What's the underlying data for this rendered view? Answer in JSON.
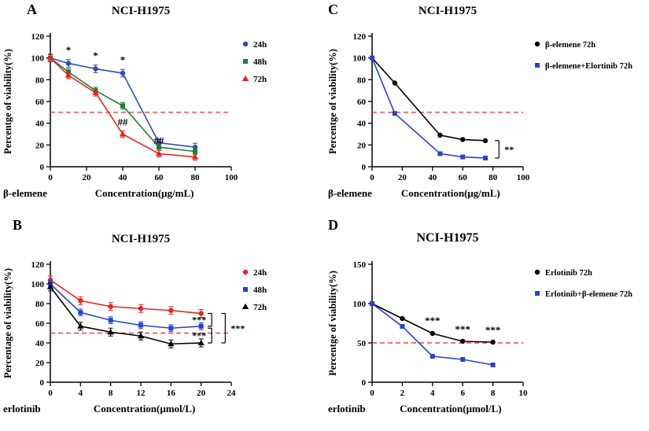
{
  "figure": {
    "background": "#ffffff",
    "cell_line": "NCI-H1975"
  },
  "chart_data": [
    {
      "id": "A",
      "panel_label": "A",
      "type": "line",
      "title": "NCI-H1975",
      "ylabel": "Percentge of viability(%)",
      "xlabel": "Concentration(μg/mL)",
      "xlabel_prefix": "β-elemene",
      "xlim": [
        0,
        100
      ],
      "ylim": [
        0,
        120
      ],
      "xticks": [
        0,
        20,
        40,
        60,
        80,
        100
      ],
      "yticks": [
        0,
        20,
        40,
        60,
        80,
        100,
        120
      ],
      "grid": false,
      "legend_position": "right",
      "reference_line": {
        "y": 50,
        "color": "#ef4444",
        "style": "dashed"
      },
      "series": [
        {
          "name": "24h",
          "color": "#2f4bb5",
          "marker": "circle",
          "yerr": 3.5,
          "x": [
            0,
            10,
            25,
            40,
            60,
            80
          ],
          "y": [
            100,
            95,
            90,
            86,
            22,
            18
          ]
        },
        {
          "name": "48h",
          "color": "#1e7b33",
          "marker": "square",
          "yerr": 3,
          "x": [
            0,
            10,
            25,
            40,
            60,
            80
          ],
          "y": [
            100,
            87,
            70,
            56,
            18,
            14
          ]
        },
        {
          "name": "72h",
          "color": "#e8231f",
          "marker": "triangle",
          "yerr": 3,
          "x": [
            0,
            10,
            25,
            40,
            60,
            80
          ],
          "y": [
            100,
            84,
            68,
            30,
            12,
            9
          ]
        }
      ],
      "annotations": [
        {
          "type": "text",
          "text": "*",
          "x": 10,
          "y": 104
        },
        {
          "type": "text",
          "text": "*",
          "x": 25,
          "y": 99
        },
        {
          "type": "text",
          "text": "*",
          "x": 40,
          "y": 95
        },
        {
          "type": "text",
          "text": "##",
          "x": 40,
          "y": 38
        },
        {
          "type": "text",
          "text": "##",
          "x": 60,
          "y": 21
        }
      ]
    },
    {
      "id": "B",
      "panel_label": "B",
      "type": "line",
      "title": "NCI-H1975",
      "ylabel": "Percentage of viability(%)",
      "xlabel": "Concentration(μmol/L)",
      "xlabel_prefix": "erlotinib",
      "xlim": [
        0,
        24
      ],
      "ylim": [
        0,
        120
      ],
      "xticks": [
        0,
        4,
        8,
        12,
        16,
        20,
        24
      ],
      "yticks": [
        0,
        20,
        40,
        60,
        80,
        100,
        120
      ],
      "grid": false,
      "legend_position": "right",
      "reference_line": {
        "y": 50,
        "color": "#ef4444",
        "style": "dashed"
      },
      "series": [
        {
          "name": "24h",
          "color": "#e8231f",
          "marker": "circle",
          "yerr": 4,
          "x": [
            0,
            4,
            8,
            12,
            16,
            20
          ],
          "y": [
            104,
            83,
            77,
            75,
            73,
            70
          ]
        },
        {
          "name": "48h",
          "color": "#2743d0",
          "marker": "square",
          "yerr": 3.5,
          "x": [
            0,
            4,
            8,
            12,
            16,
            20
          ],
          "y": [
            100,
            71,
            63,
            58,
            55,
            57
          ]
        },
        {
          "name": "72h",
          "color": "#000000",
          "marker": "triangle",
          "yerr": 4,
          "x": [
            0,
            4,
            8,
            12,
            16,
            20
          ],
          "y": [
            97,
            57,
            51,
            47,
            39,
            40
          ]
        }
      ],
      "annotations": [
        {
          "type": "bracket",
          "x": 21.4,
          "y1": 70,
          "y2": 57,
          "label": "***",
          "label_side": "left"
        },
        {
          "type": "bracket",
          "x": 21.4,
          "y1": 55,
          "y2": 40,
          "label": "***",
          "label_side": "left"
        },
        {
          "type": "bracket",
          "x": 23.2,
          "y1": 70,
          "y2": 40,
          "label": "***",
          "label_side": "right"
        }
      ]
    },
    {
      "id": "C",
      "panel_label": "C",
      "type": "line",
      "title": "NCI-H1975",
      "ylabel": "Percentge of viability(%)",
      "xlabel": "Concentration(μg/mL)",
      "xlabel_prefix": "β-elemene",
      "xlim": [
        0,
        100
      ],
      "ylim": [
        0,
        120
      ],
      "xticks": [
        0,
        20,
        40,
        60,
        80,
        100
      ],
      "yticks": [
        0,
        20,
        40,
        60,
        80,
        100,
        120
      ],
      "grid": false,
      "legend_position": "right",
      "reference_line": {
        "y": 50,
        "color": "#ef4444",
        "style": "dashed"
      },
      "series": [
        {
          "name": "β-elemene 72h",
          "color": "#000000",
          "marker": "circle",
          "yerr": 0,
          "x": [
            0,
            15,
            45,
            60,
            75
          ],
          "y": [
            100,
            77,
            29,
            25,
            24
          ]
        },
        {
          "name": "β-elemene+Elortinib 72h",
          "color": "#2743d0",
          "marker": "square",
          "yerr": 0,
          "x": [
            0,
            15,
            45,
            60,
            75
          ],
          "y": [
            100,
            49,
            12,
            9,
            8
          ]
        }
      ],
      "annotations": [
        {
          "type": "bracket",
          "x": 84,
          "y1": 24,
          "y2": 8,
          "label": "**",
          "label_side": "right"
        }
      ]
    },
    {
      "id": "D",
      "panel_label": "D",
      "type": "line",
      "title": "NCI-H1975",
      "ylabel": "Percentge of viability(%)",
      "xlabel": "Concentration(μmol/L)",
      "xlabel_prefix": "erlotinib",
      "xlim": [
        0,
        10
      ],
      "ylim": [
        0,
        150
      ],
      "xticks": [
        0,
        2,
        4,
        6,
        8,
        10
      ],
      "yticks": [
        0,
        50,
        100,
        150
      ],
      "grid": false,
      "legend_position": "right",
      "reference_line": {
        "y": 50,
        "color": "#ef4444",
        "style": "dashed"
      },
      "series": [
        {
          "name": "Erlotinib 72h",
          "color": "#000000",
          "marker": "circle",
          "yerr": 0,
          "x": [
            0,
            2,
            4,
            6,
            8
          ],
          "y": [
            100,
            81,
            62,
            52,
            51
          ]
        },
        {
          "name": "Erlotinib+β-elemene 72h",
          "color": "#2743d0",
          "marker": "square",
          "yerr": 0,
          "x": [
            0,
            2,
            4,
            6,
            8
          ],
          "y": [
            100,
            71,
            33,
            29,
            22
          ]
        }
      ],
      "annotations": [
        {
          "type": "text",
          "text": "***",
          "x": 4,
          "y": 74
        },
        {
          "type": "text",
          "text": "***",
          "x": 6,
          "y": 63
        },
        {
          "type": "text",
          "text": "***",
          "x": 8,
          "y": 62
        }
      ]
    }
  ]
}
